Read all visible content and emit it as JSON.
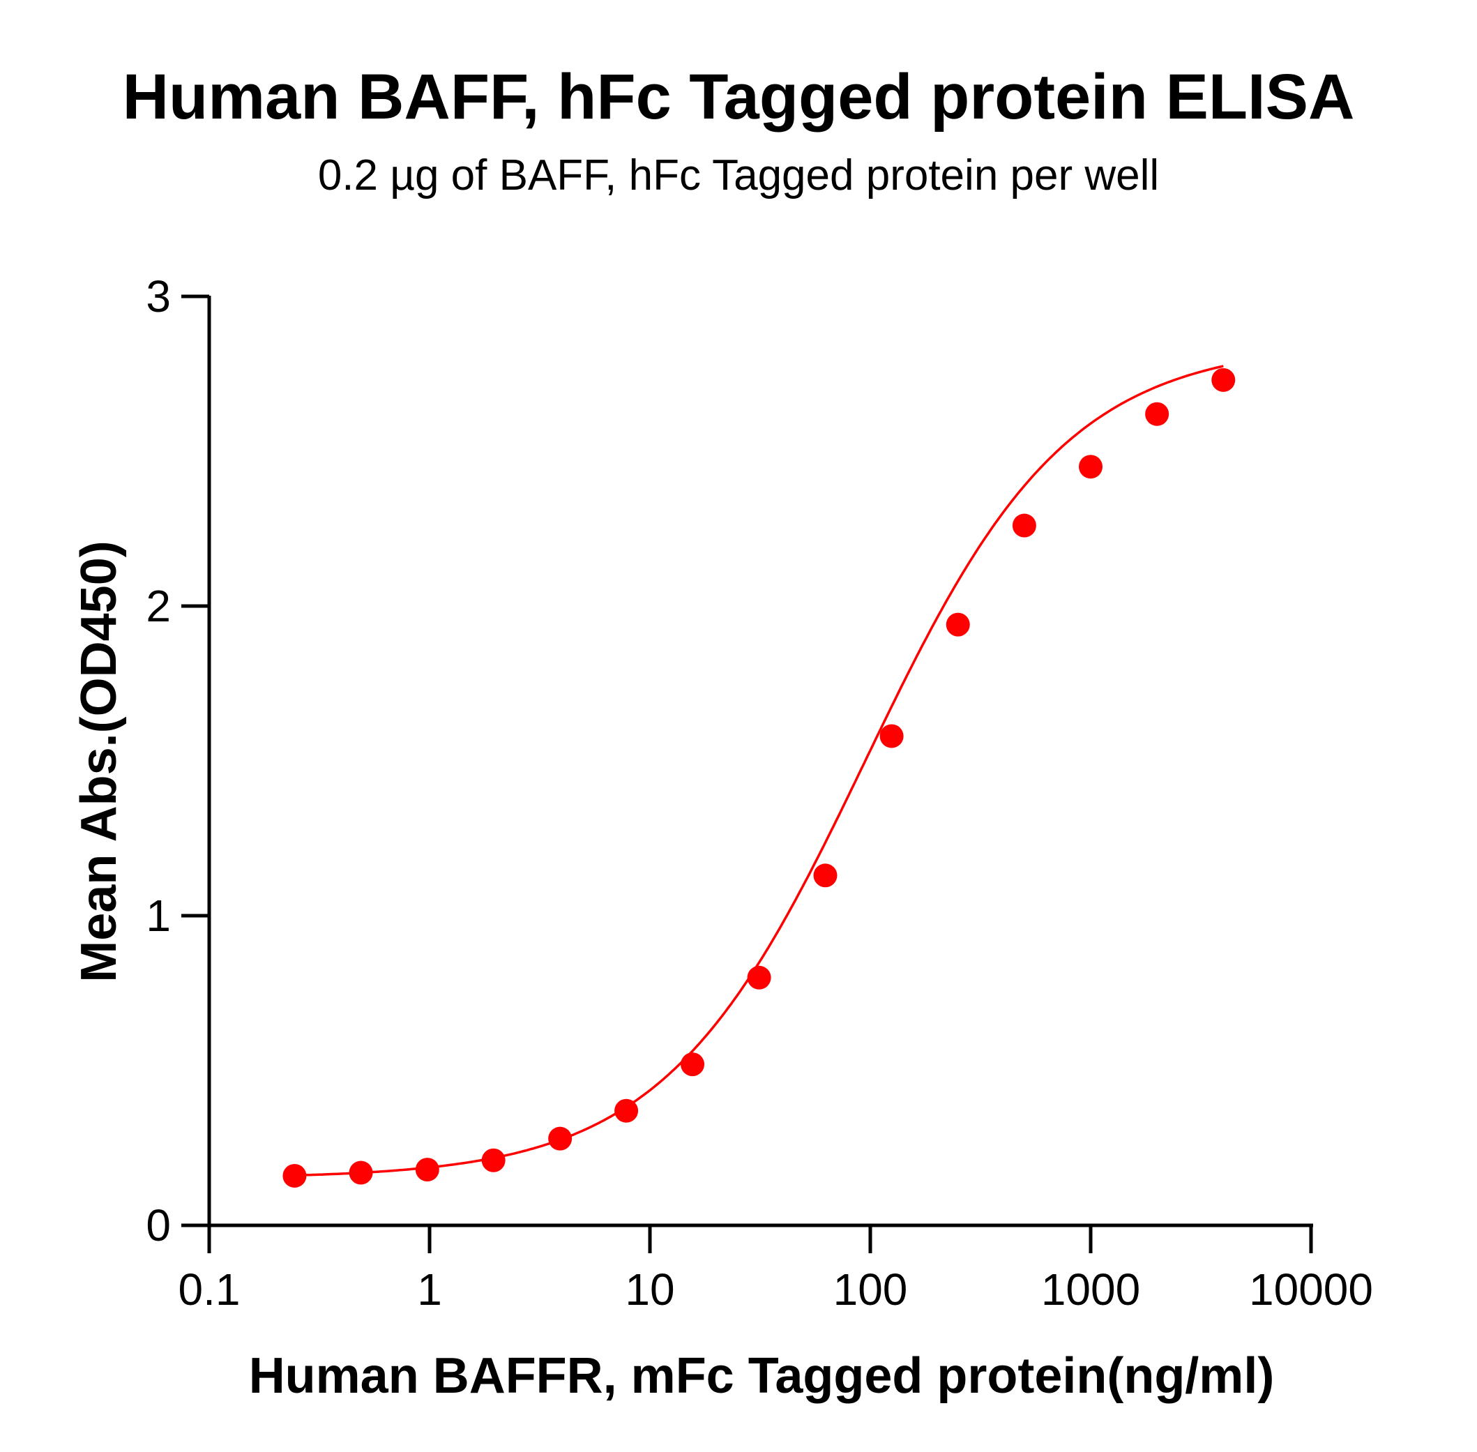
{
  "chart_data": {
    "type": "scatter",
    "title": "Human BAFF, hFc Tagged protein ELISA",
    "subtitle": "0.2 µg of BAFF, hFc Tagged protein per well",
    "xlabel": "Human BAFFR, mFc Tagged protein(ng/ml)",
    "ylabel": "Mean Abs.(OD450)",
    "x_scale": "log",
    "xlim": [
      0.1,
      10000
    ],
    "ylim": [
      0,
      3
    ],
    "x_ticks": [
      "0.1",
      "1",
      "10",
      "100",
      "1000",
      "10000"
    ],
    "y_ticks": [
      "0",
      "1",
      "2",
      "3"
    ],
    "grid": false,
    "series": [
      {
        "color": "#ff0000",
        "x": [
          0.244,
          0.488,
          0.977,
          1.95,
          3.91,
          7.81,
          15.6,
          31.3,
          62.5,
          125,
          250,
          500,
          1000,
          2000,
          4000
        ],
        "y": [
          0.16,
          0.17,
          0.18,
          0.21,
          0.28,
          0.37,
          0.52,
          0.8,
          1.13,
          1.58,
          1.94,
          2.26,
          2.45,
          2.62,
          2.73
        ]
      }
    ],
    "fit_curve": {
      "color": "#ff0000",
      "model": "4PL",
      "bottom": 0.152,
      "top": 2.85,
      "ec50": 95,
      "hill": 0.95
    }
  }
}
